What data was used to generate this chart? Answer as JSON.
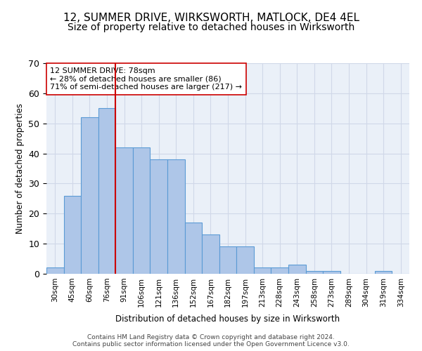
{
  "title_line1": "12, SUMMER DRIVE, WIRKSWORTH, MATLOCK, DE4 4EL",
  "title_line2": "Size of property relative to detached houses in Wirksworth",
  "xlabel": "Distribution of detached houses by size in Wirksworth",
  "ylabel": "Number of detached properties",
  "categories": [
    "30sqm",
    "45sqm",
    "60sqm",
    "76sqm",
    "91sqm",
    "106sqm",
    "121sqm",
    "136sqm",
    "152sqm",
    "167sqm",
    "182sqm",
    "197sqm",
    "213sqm",
    "228sqm",
    "243sqm",
    "258sqm",
    "273sqm",
    "289sqm",
    "304sqm",
    "319sqm",
    "334sqm"
  ],
  "values": [
    2,
    26,
    52,
    55,
    42,
    42,
    38,
    38,
    17,
    13,
    9,
    9,
    2,
    2,
    3,
    1,
    1,
    0,
    0,
    1,
    0
  ],
  "bar_color": "#aec6e8",
  "bar_edge_color": "#5b9bd5",
  "vline_x_index": 3,
  "vline_color": "#cc0000",
  "annotation_text": "12 SUMMER DRIVE: 78sqm\n← 28% of detached houses are smaller (86)\n71% of semi-detached houses are larger (217) →",
  "annotation_box_color": "#ffffff",
  "annotation_box_edge": "#cc0000",
  "footer_line1": "Contains HM Land Registry data © Crown copyright and database right 2024.",
  "footer_line2": "Contains public sector information licensed under the Open Government Licence v3.0.",
  "ylim": [
    0,
    70
  ],
  "grid_color": "#d0d8e8",
  "background_color": "#eaf0f8",
  "title_fontsize": 11,
  "subtitle_fontsize": 10,
  "bar_width": 1.0
}
